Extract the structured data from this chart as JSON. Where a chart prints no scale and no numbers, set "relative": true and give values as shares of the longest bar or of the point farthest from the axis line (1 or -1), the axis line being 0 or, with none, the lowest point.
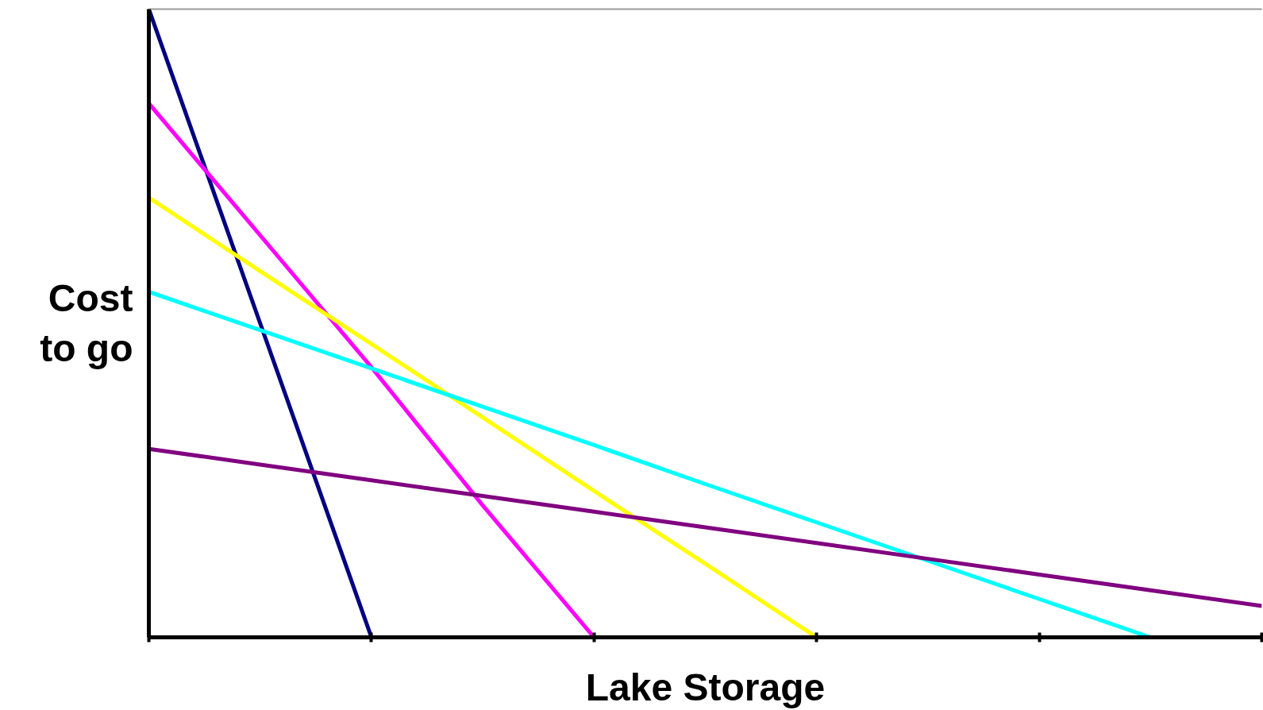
{
  "chart_data": {
    "type": "line",
    "relative": true,
    "xlabel": "Lake Storage",
    "ylabel": "Cost\nto go",
    "categories": [
      null,
      null,
      null,
      null,
      null,
      null,
      null,
      null,
      null,
      null,
      null
    ],
    "series": [
      {
        "color": "#000080",
        "values": [
          1,
          0.5,
          0,
          null,
          null,
          null,
          null,
          null,
          null,
          null,
          null
        ]
      },
      {
        "color": "#ff00ff",
        "values": [
          0.85,
          0.64,
          0.43,
          0.21,
          0,
          null,
          null,
          null,
          null,
          null,
          null
        ]
      },
      {
        "color": "#ffff00",
        "values": [
          0.7,
          0.583,
          0.467,
          0.35,
          0.233,
          0.117,
          0,
          null,
          null,
          null,
          null
        ]
      },
      {
        "color": "#00ffff",
        "values": [
          0.55,
          0.489,
          0.428,
          0.367,
          0.306,
          0.244,
          0.183,
          0.122,
          0.061,
          0,
          null
        ]
      },
      {
        "color": "#800080",
        "values": [
          0.3,
          0.275,
          0.25,
          0.225,
          0.2,
          0.175,
          0.15,
          0.125,
          0.1,
          0.075,
          0.05
        ]
      }
    ]
  }
}
